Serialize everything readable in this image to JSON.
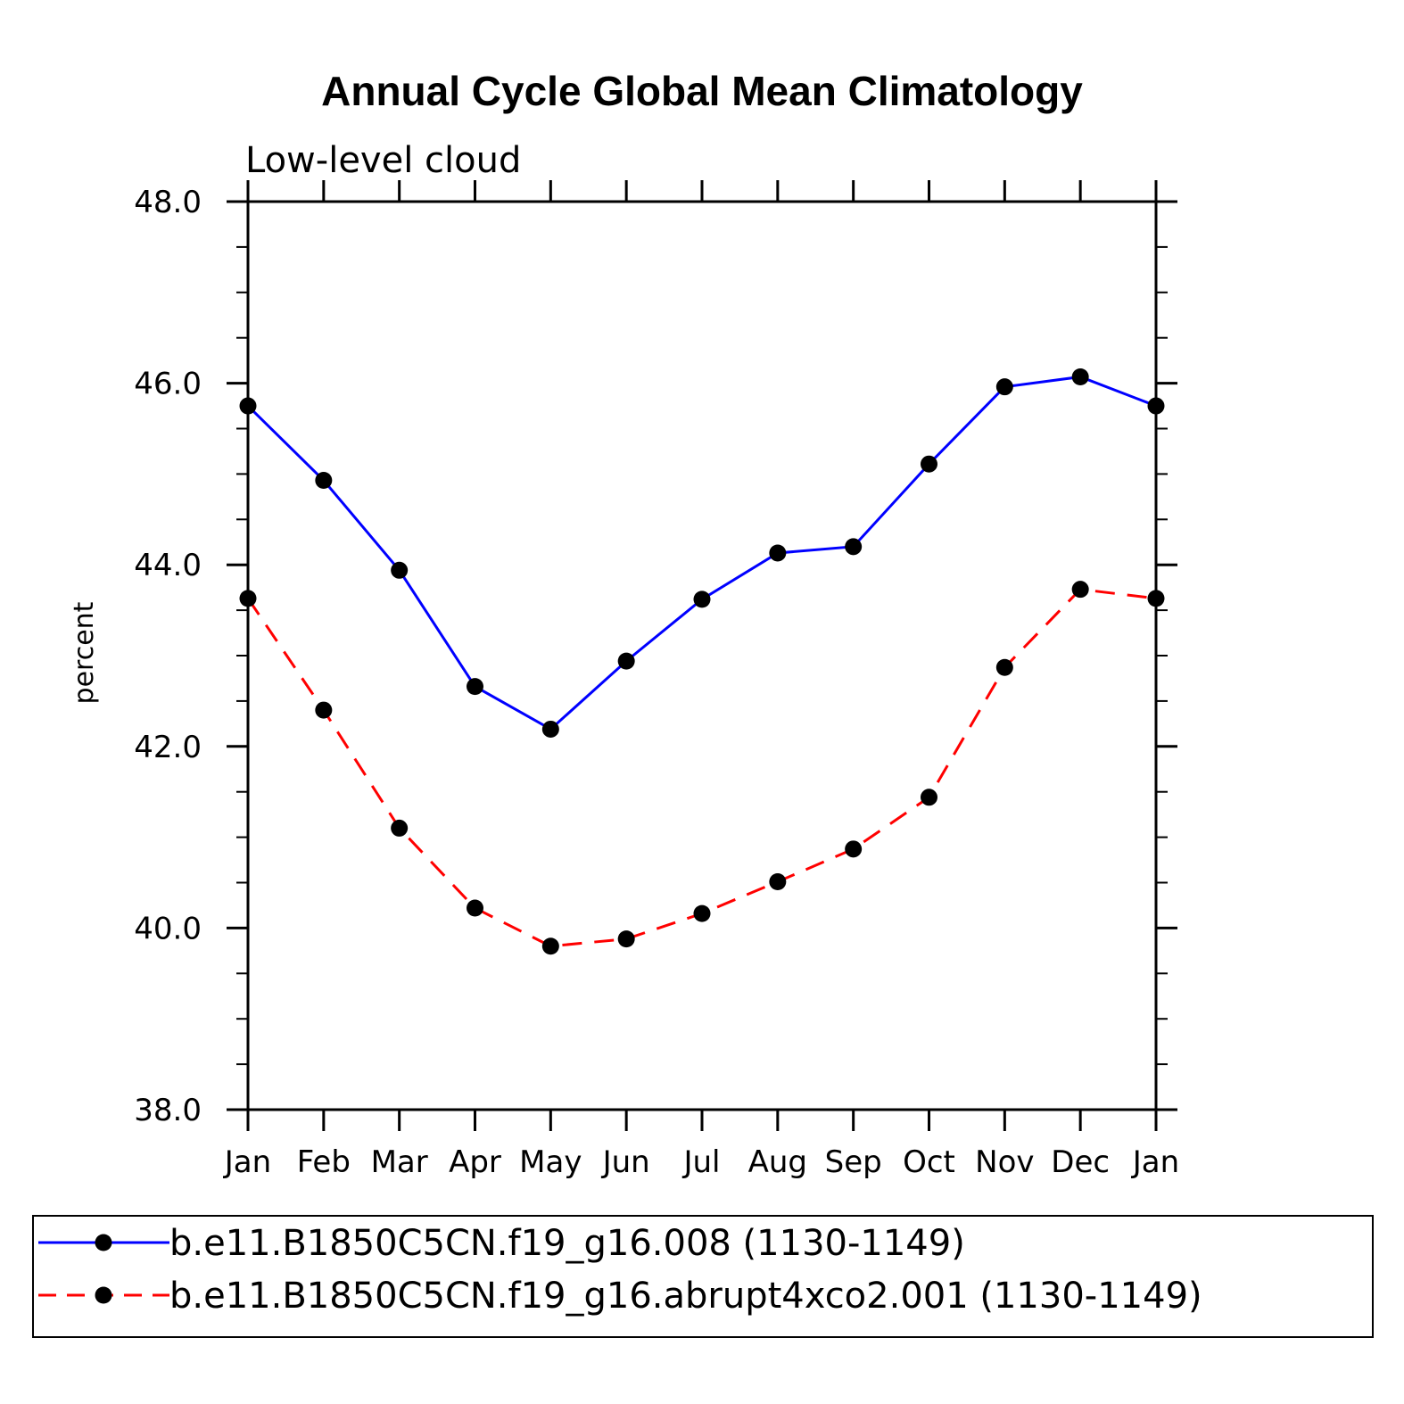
{
  "chart_data": {
    "type": "line",
    "title": "Annual Cycle Global Mean Climatology",
    "subtitle": "Low-level cloud",
    "xlabel": "",
    "ylabel": "percent",
    "categories": [
      "Jan",
      "Feb",
      "Mar",
      "Apr",
      "May",
      "Jun",
      "Jul",
      "Aug",
      "Sep",
      "Oct",
      "Nov",
      "Dec",
      "Jan"
    ],
    "ylim": [
      38.0,
      48.0
    ],
    "yticks": [
      "38.0",
      "40.0",
      "42.0",
      "44.0",
      "46.0",
      "48.0"
    ],
    "yminor_step": 0.5,
    "grid": false,
    "legend_position": "bottom",
    "series": [
      {
        "name": "b.e11.B1850C5CN.f19_g16.008 (1130-1149)",
        "color": "#0000ff",
        "dash": "solid",
        "marker": "filled-circle",
        "values": [
          45.75,
          44.93,
          43.94,
          42.66,
          42.19,
          42.94,
          43.62,
          44.13,
          44.2,
          45.11,
          45.96,
          46.07,
          45.75
        ]
      },
      {
        "name": "b.e11.B1850C5CN.f19_g16.abrupt4xco2.001 (1130-1149)",
        "color": "#ff0000",
        "dash": "dashed",
        "marker": "filled-circle",
        "values": [
          43.63,
          42.4,
          41.1,
          40.22,
          39.8,
          39.88,
          40.16,
          40.51,
          40.87,
          41.44,
          42.87,
          43.73,
          43.63
        ]
      }
    ]
  }
}
